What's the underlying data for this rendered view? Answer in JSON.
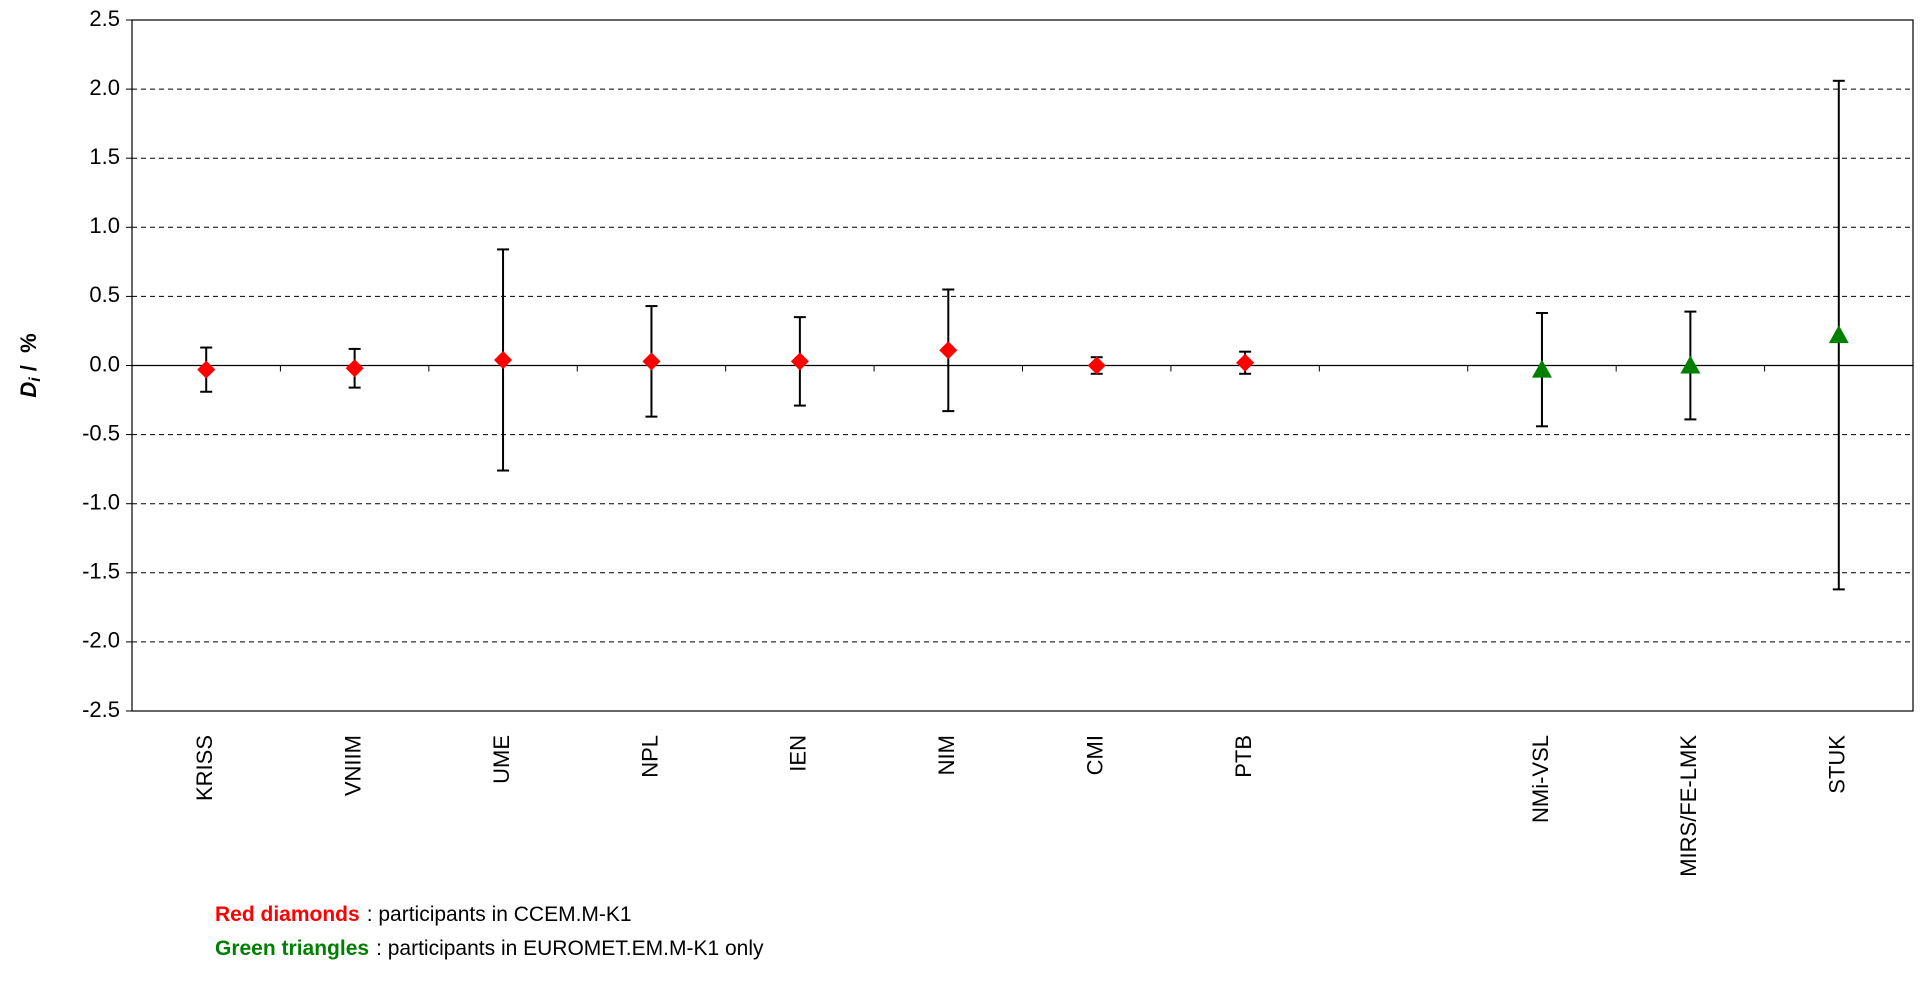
{
  "chart_data": {
    "type": "errorbar",
    "y_label": {
      "main": "D",
      "sub": "i",
      "rest": " /  %"
    },
    "categories": [
      "KRISS",
      "VNIIM",
      "UME",
      "NPL",
      "IEN",
      "NIM",
      "CMI",
      "PTB",
      null,
      "NMi-VSL",
      "MIRS/FE-LMK",
      "STUK"
    ],
    "series": [
      {
        "name": "Red diamonds",
        "description": ": participants in CCEM.M-K1",
        "color": "#ff0000",
        "marker": "diamond",
        "values": [
          -0.03,
          -0.02,
          0.04,
          0.03,
          0.03,
          0.11,
          0.0,
          0.02,
          null,
          null,
          null,
          null
        ],
        "errors": [
          0.16,
          0.14,
          0.8,
          0.4,
          0.32,
          0.44,
          0.06,
          0.08,
          null,
          null,
          null,
          null
        ]
      },
      {
        "name": "Green triangles",
        "description": ": participants in EUROMET.EM.M-K1 only",
        "color": "#008000",
        "marker": "triangle",
        "values": [
          null,
          null,
          null,
          null,
          null,
          null,
          null,
          null,
          null,
          -0.03,
          0.0,
          0.22
        ],
        "errors": [
          null,
          null,
          null,
          null,
          null,
          null,
          null,
          null,
          null,
          0.41,
          0.39,
          1.84
        ]
      }
    ],
    "ylim": [
      -2.5,
      2.5
    ],
    "yticks": [
      -2.5,
      {
        "value": -2,
        "label": "-2.0"
      },
      -1.5,
      {
        "value": -1,
        "label": "-1.0"
      },
      -0.5,
      {
        "value": 0,
        "label": "0.0"
      },
      0.5,
      {
        "value": 1,
        "label": "1.0"
      },
      1.5,
      {
        "value": 2,
        "label": "2.0"
      },
      2.5
    ],
    "grid": true
  }
}
